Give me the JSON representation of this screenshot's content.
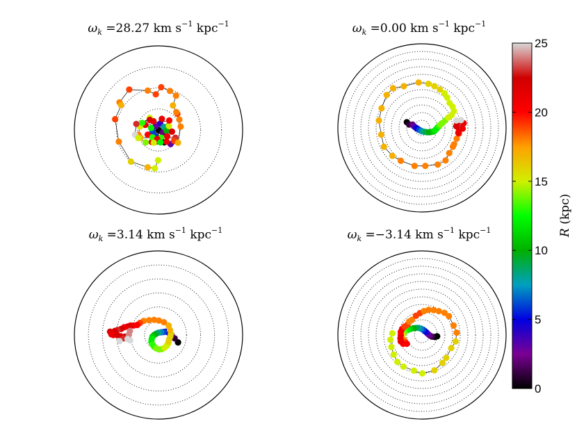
{
  "chart_data": {
    "type": "scatter",
    "colorbar": {
      "label": "R (kpc)",
      "min": 0,
      "max": 25,
      "ticks": [
        "0",
        "5",
        "10",
        "15",
        "20",
        "25"
      ],
      "colormap": [
        "#000000",
        "#7a0094",
        "#0000e0",
        "#00a0c0",
        "#00b000",
        "#00ff00",
        "#d0f000",
        "#ffa000",
        "#ff0000",
        "#d00000",
        "#d8d8d8"
      ]
    },
    "panels": [
      {
        "title": "ω_k =28.27 km s⁻¹ kpc⁻¹",
        "title_parts": {
          "omega": "ω",
          "sub": "k",
          "eq": " =28.27 km s",
          "sup1": "−1",
          "unit": " kpc",
          "sup2": "−1"
        },
        "ring_count": 3,
        "r_max": 25,
        "connect": true,
        "points": [
          [
            0,
            0
          ],
          [
            1.2,
            -0.8
          ],
          [
            -0.9,
            1.1
          ],
          [
            0.5,
            1.9
          ],
          [
            -1.8,
            -0.5
          ],
          [
            1.6,
            0.9
          ],
          [
            -1.2,
            -1.6
          ],
          [
            2.4,
            -0.2
          ],
          [
            -2.2,
            0.6
          ],
          [
            0.8,
            -2.3
          ],
          [
            3.1,
            1.2
          ],
          [
            -1.5,
            2.6
          ],
          [
            2.6,
            -1.9
          ],
          [
            -3.2,
            -1.4
          ],
          [
            1.0,
            3.3
          ],
          [
            -0.6,
            -3.4
          ],
          [
            4.0,
            -0.5
          ],
          [
            -3.9,
            1.5
          ],
          [
            3.2,
            2.8
          ],
          [
            -2.0,
            -3.6
          ],
          [
            -1.8,
            -2.2
          ],
          [
            -0.4,
            -2.7
          ],
          [
            1.7,
            -3.7
          ],
          [
            3.6,
            -4.2
          ],
          [
            5.0,
            -2.3
          ],
          [
            -5.4,
            -2.3
          ],
          [
            -6.0,
            -1.4
          ],
          [
            -5.5,
            1.0
          ],
          [
            -4.8,
            2.1
          ],
          [
            -2.6,
            3.6
          ],
          [
            -2.6,
            3.0
          ],
          [
            -6.6,
            1.8
          ],
          [
            -7.0,
            -1.4
          ],
          [
            -6.0,
            -2.4
          ],
          [
            -3.8,
            -3.7
          ],
          [
            -1.4,
            -3.8
          ],
          [
            0.6,
            -3.7
          ],
          [
            2.4,
            -3.5
          ],
          [
            4.6,
            -3.2
          ],
          [
            5.8,
            -3.8
          ],
          [
            6.6,
            1.0
          ],
          [
            6.2,
            3.1
          ],
          [
            5.6,
            4.8
          ],
          [
            5.3,
            5.3
          ],
          [
            4.3,
            7.3
          ],
          [
            5.2,
            10.2
          ],
          [
            3.4,
            11.6
          ],
          [
            0.8,
            12.7
          ],
          [
            -0.8,
            10.6
          ],
          [
            -3.2,
            11.7
          ],
          [
            -8.7,
            12.0
          ],
          [
            -11.6,
            8.2
          ],
          [
            -11.1,
            7.4
          ],
          [
            -12.9,
            3.2
          ],
          [
            -11.8,
            -3.5
          ],
          [
            -8.2,
            -9.4
          ],
          [
            -3.2,
            -11.1
          ],
          [
            -1.1,
            -11.4
          ],
          [
            -0.1,
            -9.0
          ]
        ],
        "values": [
          0,
          2,
          3,
          4,
          6,
          8,
          6,
          10,
          12,
          13,
          15,
          21,
          21,
          20,
          21,
          22,
          22,
          21,
          20,
          21,
          13,
          21,
          0,
          3,
          23,
          17,
          18,
          15,
          13,
          15,
          22,
          23,
          25,
          15,
          14,
          15,
          12,
          21,
          19,
          17,
          18,
          18,
          19,
          18,
          17,
          18,
          18,
          19,
          19,
          18,
          19,
          18,
          17,
          19,
          18,
          16,
          17,
          15,
          15
        ]
      },
      {
        "title": "ω_k =0.00 km s⁻¹ kpc⁻¹",
        "title_parts": {
          "omega": "ω",
          "sub": "k",
          "eq": " =0.00 km s",
          "sup1": "−1",
          "unit": " kpc",
          "sup2": "−1"
        },
        "ring_count": 10,
        "r_max": 25,
        "connect": true,
        "points": [
          [
            -4.5,
            1.7
          ],
          [
            -3.8,
            1.0
          ],
          [
            -2.8,
            1.0
          ],
          [
            -2.4,
            0.5
          ],
          [
            -1.9,
            0.1
          ],
          [
            -1.4,
            -0.2
          ],
          [
            -0.8,
            -0.6
          ],
          [
            -0.2,
            -0.9
          ],
          [
            0.4,
            -1.1
          ],
          [
            1.0,
            -1.2
          ],
          [
            1.6,
            -1.3
          ],
          [
            2.2,
            -1.3
          ],
          [
            2.8,
            -1.2
          ],
          [
            3.4,
            -1.1
          ],
          [
            3.9,
            -0.7
          ],
          [
            4.3,
            -0.3
          ],
          [
            4.7,
            0.2
          ],
          [
            5.1,
            0.6
          ],
          [
            5.5,
            1.0
          ],
          [
            6.0,
            1.4
          ],
          [
            6.9,
            2.2
          ],
          [
            7.8,
            3.1
          ],
          [
            8.8,
            3.8
          ],
          [
            9.5,
            5.0
          ],
          [
            9.1,
            6.3
          ],
          [
            8.2,
            7.4
          ],
          [
            7.5,
            9.0
          ],
          [
            6.7,
            10.3
          ],
          [
            5.3,
            11.4
          ],
          [
            3.7,
            12.4
          ],
          [
            1.9,
            13.1
          ],
          [
            -1.0,
            13.5
          ],
          [
            -5.4,
            12.4
          ],
          [
            -8.6,
            11.8
          ],
          [
            -10.5,
            9.8
          ],
          [
            -12.0,
            5.8
          ],
          [
            -12.8,
            2.2
          ],
          [
            -12.1,
            -2.0
          ],
          [
            -11.3,
            -5.6
          ],
          [
            -8.8,
            -8.3
          ],
          [
            -6.3,
            -9.8
          ],
          [
            -2.2,
            -11.3
          ],
          [
            1.0,
            -11.3
          ],
          [
            4.7,
            -10.9
          ],
          [
            7.0,
            -9.7
          ],
          [
            8.1,
            -7.5
          ],
          [
            9.2,
            -5.6
          ],
          [
            9.5,
            -4.9
          ],
          [
            10.3,
            -3.2
          ],
          [
            11.0,
            -1.7
          ],
          [
            11.0,
            -0.8
          ],
          [
            11.2,
            -0.1
          ],
          [
            11.5,
            1.1
          ],
          [
            10.8,
            -1.5
          ],
          [
            11.2,
            0.5
          ],
          [
            11.8,
            0.3
          ],
          [
            11.3,
            1.5
          ],
          [
            12.4,
            1.4
          ],
          [
            12.1,
            -0.2
          ],
          [
            10.4,
            1.7
          ],
          [
            10.2,
            0.5
          ],
          [
            11.6,
            2.3
          ],
          [
            10.2,
            2.2
          ]
        ],
        "values": [
          0,
          1,
          2,
          3,
          4,
          5,
          6,
          7,
          8,
          9,
          9,
          10,
          10,
          11,
          12,
          12,
          12,
          13,
          14,
          14,
          14,
          15,
          15,
          15,
          15,
          15,
          15,
          15,
          16,
          16,
          16,
          17,
          17,
          17,
          17,
          17,
          17,
          17,
          17,
          17,
          18,
          18,
          18,
          18,
          18,
          18,
          18,
          18,
          18,
          19,
          20,
          21,
          22,
          21,
          22,
          23,
          23,
          21,
          21,
          22,
          22,
          25,
          25
        ]
      },
      {
        "title": "ω_k =3.14 km s⁻¹ kpc⁻¹",
        "title_parts": {
          "omega": "ω",
          "sub": "k",
          "eq": " =3.14 km s",
          "sup1": "−1",
          "unit": " kpc",
          "sup2": "−1"
        },
        "ring_count": 5,
        "r_max": 25,
        "connect": true,
        "points": [
          [
            5.8,
            -2.2
          ],
          [
            4.8,
            -1.0
          ],
          [
            3.9,
            0.0
          ],
          [
            3.4,
            0.3
          ],
          [
            2.9,
            0.8
          ],
          [
            2.2,
            1.0
          ],
          [
            1.5,
            0.9
          ],
          [
            0.8,
            0.8
          ],
          [
            0.0,
            0.7
          ],
          [
            -0.7,
            0.4
          ],
          [
            -1.3,
            0.0
          ],
          [
            -1.8,
            -0.5
          ],
          [
            -2.0,
            -1.2
          ],
          [
            -2.1,
            -2.0
          ],
          [
            -1.8,
            -2.8
          ],
          [
            -1.3,
            -3.5
          ],
          [
            -0.6,
            -4.0
          ],
          [
            0.2,
            -4.3
          ],
          [
            1.0,
            -4.2
          ],
          [
            1.8,
            -3.8
          ],
          [
            2.4,
            -3.2
          ],
          [
            2.8,
            -2.6
          ],
          [
            3.0,
            -2.0
          ],
          [
            3.2,
            -1.2
          ],
          [
            3.5,
            -0.5
          ],
          [
            3.7,
            0.4
          ],
          [
            3.4,
            1.5
          ],
          [
            3.0,
            2.8
          ],
          [
            1.6,
            3.8
          ],
          [
            0.1,
            4.3
          ],
          [
            -1.3,
            4.5
          ],
          [
            -2.8,
            4.4
          ],
          [
            -4.4,
            4.2
          ],
          [
            -5.5,
            3.6
          ],
          [
            -6.3,
            3.0
          ],
          [
            -7.4,
            2.8
          ],
          [
            -8.3,
            2.8
          ],
          [
            -9.2,
            2.5
          ],
          [
            -10.2,
            2.3
          ],
          [
            -11.1,
            1.8
          ],
          [
            -12.2,
            1.5
          ],
          [
            -13.0,
            1.2
          ],
          [
            -14.4,
            1.0
          ],
          [
            -14.0,
            0.2
          ],
          [
            -13.4,
            0.0
          ],
          [
            -12.3,
            0.0
          ],
          [
            -11.2,
            -0.4
          ],
          [
            -10.0,
            -0.5
          ],
          [
            -10.4,
            -1.0
          ],
          [
            -8.5,
            1.2
          ],
          [
            -8.8,
            0.1
          ],
          [
            -8.4,
            -1.6
          ],
          [
            -9.2,
            -1.2
          ],
          [
            -11.6,
            -1.8
          ]
        ],
        "values": [
          0,
          1,
          2,
          3,
          4,
          5,
          6,
          7,
          8,
          9,
          10,
          11,
          12,
          12,
          13,
          13,
          14,
          14,
          14,
          15,
          15,
          15,
          16,
          16,
          16,
          16,
          17,
          17,
          18,
          18,
          18,
          18,
          18,
          19,
          20,
          20,
          21,
          22,
          21,
          22,
          23,
          22,
          22,
          21,
          21,
          22,
          22,
          22,
          23,
          24,
          24,
          25,
          25,
          25
        ]
      },
      {
        "title": "ω_k =−3.14 km s⁻¹ kpc⁻¹",
        "title_parts": {
          "omega": "ω",
          "sub": "k",
          "eq": " =−3.14 km s",
          "sup1": "−1",
          "unit": " kpc",
          "sup2": "−1"
        },
        "ring_count": 10,
        "r_max": 25,
        "connect": true,
        "points": [
          [
            4.5,
            -0.4
          ],
          [
            3.8,
            -0.6
          ],
          [
            3.0,
            -0.5
          ],
          [
            2.4,
            -0.2
          ],
          [
            1.8,
            0.3
          ],
          [
            1.3,
            0.8
          ],
          [
            0.8,
            1.2
          ],
          [
            0.3,
            1.6
          ],
          [
            -0.3,
            1.9
          ],
          [
            -1.0,
            2.1
          ],
          [
            -1.8,
            2.1
          ],
          [
            -2.6,
            2.0
          ],
          [
            -3.4,
            1.8
          ],
          [
            -4.2,
            1.5
          ],
          [
            -5.0,
            1.1
          ],
          [
            -5.4,
            0.6
          ],
          [
            -5.8,
            0.0
          ],
          [
            -5.9,
            -0.6
          ],
          [
            -5.9,
            -1.3
          ],
          [
            -5.3,
            -1.5
          ],
          [
            -5.0,
            -2.1
          ],
          [
            -4.5,
            -2.6
          ],
          [
            -5.6,
            -2.6
          ],
          [
            -6.3,
            -1.9
          ],
          [
            -6.4,
            -1.0
          ],
          [
            -6.3,
            0.0
          ],
          [
            -6.3,
            0.9
          ],
          [
            -5.9,
            1.8
          ],
          [
            -5.2,
            2.5
          ],
          [
            -4.3,
            3.1
          ],
          [
            -3.8,
            4.0
          ],
          [
            -3.0,
            4.5
          ],
          [
            -1.8,
            5.7
          ],
          [
            -0.6,
            6.5
          ],
          [
            0.6,
            7.1
          ],
          [
            2.0,
            7.5
          ],
          [
            3.5,
            7.4
          ],
          [
            5.0,
            7.1
          ],
          [
            6.7,
            6.6
          ],
          [
            8.0,
            5.6
          ],
          [
            9.4,
            2.8
          ],
          [
            10.3,
            0.7
          ],
          [
            10.0,
            -1.9
          ],
          [
            8.7,
            -3.9
          ],
          [
            7.2,
            -6.8
          ],
          [
            6.1,
            -8.3
          ],
          [
            3.7,
            -10.5
          ],
          [
            0.1,
            -11.4
          ],
          [
            -2.4,
            -10.6
          ],
          [
            -5.5,
            -9.4
          ],
          [
            -7.3,
            -8.0
          ],
          [
            -8.4,
            -5.8
          ],
          [
            -9.1,
            -3.6
          ],
          [
            -9.4,
            -1.4
          ],
          [
            -8.8,
            0.5
          ]
        ],
        "values": [
          0,
          0,
          1,
          2,
          3,
          4,
          5,
          6,
          7,
          8,
          9,
          10,
          11,
          12,
          13,
          14,
          15,
          16,
          17,
          18,
          19,
          20,
          20,
          21,
          21,
          21,
          20,
          20,
          19,
          19,
          18,
          18,
          19,
          19,
          18,
          18,
          18,
          18,
          18,
          18,
          18,
          18,
          16,
          16,
          16,
          16,
          16,
          15,
          15,
          15,
          15,
          15,
          15,
          15,
          15
        ]
      }
    ]
  }
}
